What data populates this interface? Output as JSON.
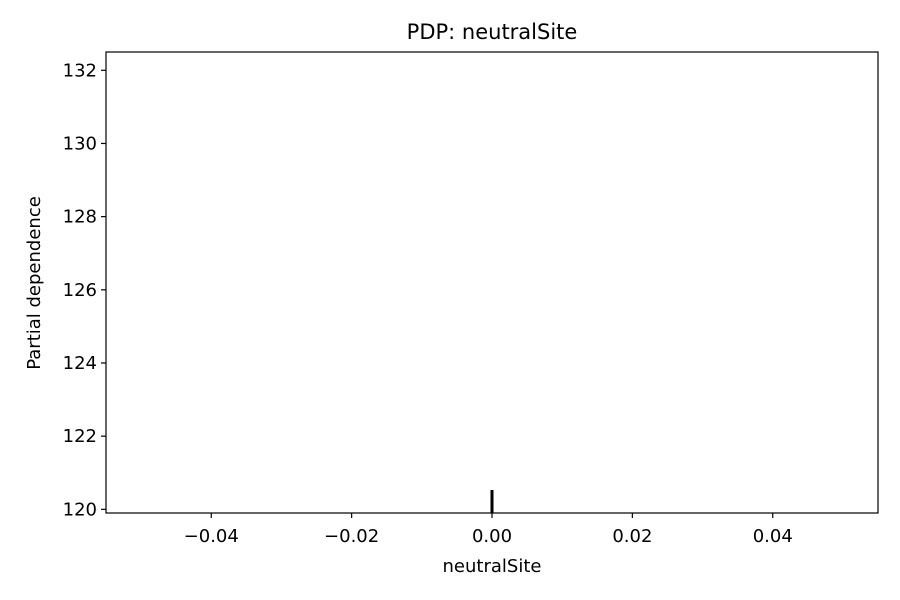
{
  "chart_data": {
    "type": "line",
    "title": "PDP: neutralSite",
    "xlabel": "neutralSite",
    "ylabel": "Partial dependence",
    "xlim": [
      -0.055,
      0.055
    ],
    "ylim": [
      119.9,
      132.5
    ],
    "x_ticks": [
      -0.04,
      -0.02,
      0.0,
      0.02,
      0.04
    ],
    "x_tick_labels": [
      "−0.04",
      "−0.02",
      "0.00",
      "0.02",
      "0.04"
    ],
    "y_ticks": [
      120,
      122,
      124,
      126,
      128,
      130,
      132
    ],
    "y_tick_labels": [
      "120",
      "122",
      "124",
      "126",
      "128",
      "130",
      "132"
    ],
    "series": [
      {
        "x": [
          0.0
        ],
        "y": [
          120.0
        ]
      }
    ],
    "rug": [
      0.0
    ],
    "grid": false
  }
}
